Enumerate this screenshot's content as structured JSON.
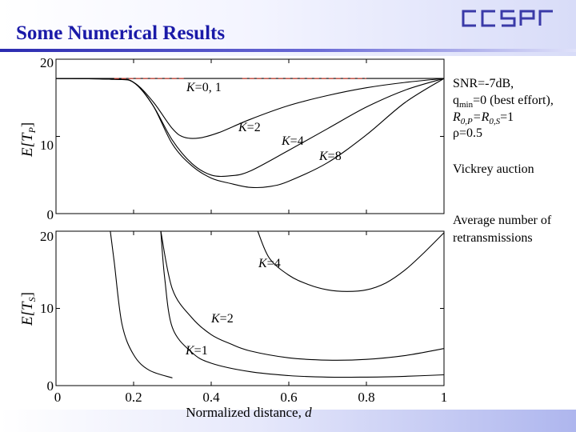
{
  "slide": {
    "title": "Some Numerical Results",
    "logo_text": "CCSPr",
    "colors": {
      "title": "#1a1aa8",
      "rule": "#2b2bb0",
      "curve": "#000000"
    }
  },
  "annotations": {
    "snr": "SNR=-7dB,",
    "qmin_pre": "q",
    "qmin_sub": "min",
    "qmin_post": "=0 (best effort),",
    "r_a": "R",
    "r_a_sub": "0,P",
    "r_mid": "=R",
    "r_b_sub": "0,S",
    "r_end": "=1",
    "rho": "ρ=0.5",
    "auction": "Vickrey auction",
    "avg1": "Average number of",
    "avg2": "retransmissions"
  },
  "chart_data": [
    {
      "type": "line",
      "ylabel": "E[T_P]",
      "ylabel_main": "E[T",
      "ylabel_sub": "P",
      "ylabel_end": "]",
      "ylim": [
        0,
        20
      ],
      "xlim": [
        0,
        1
      ],
      "yticks": [
        "20",
        "10",
        "0"
      ],
      "series": [
        {
          "name": "K=0, 1",
          "style": "dashed",
          "x": [
            0.0,
            0.15,
            0.8,
            1.0
          ],
          "y": [
            17.5,
            17.5,
            17.5,
            17.5
          ]
        },
        {
          "name": "K=2",
          "x": [
            0.0,
            0.15,
            0.2,
            0.25,
            0.3,
            0.33,
            0.37,
            0.42,
            0.5,
            0.6,
            0.7,
            0.8,
            0.9,
            1.0
          ],
          "y": [
            17.5,
            17.4,
            17.0,
            14.5,
            11.0,
            9.9,
            9.8,
            10.5,
            12.2,
            14.0,
            15.3,
            16.3,
            17.0,
            17.5
          ]
        },
        {
          "name": "K=4",
          "x": [
            0.0,
            0.15,
            0.2,
            0.25,
            0.3,
            0.35,
            0.4,
            0.45,
            0.5,
            0.6,
            0.7,
            0.8,
            0.9,
            1.0
          ],
          "y": [
            17.5,
            17.4,
            17.0,
            14.0,
            9.5,
            6.5,
            5.0,
            4.9,
            5.5,
            8.2,
            11.0,
            13.8,
            16.0,
            17.5
          ]
        },
        {
          "name": "K=8",
          "x": [
            0.0,
            0.15,
            0.2,
            0.25,
            0.3,
            0.35,
            0.4,
            0.45,
            0.5,
            0.55,
            0.6,
            0.7,
            0.8,
            0.9,
            1.0
          ],
          "y": [
            17.5,
            17.4,
            17.0,
            14.0,
            9.0,
            6.2,
            4.6,
            3.9,
            3.4,
            3.5,
            4.2,
            6.6,
            10.2,
            14.4,
            17.5
          ]
        }
      ],
      "labels": [
        {
          "k": "K",
          "v": "=0, 1"
        },
        {
          "k": "K",
          "v": "=2"
        },
        {
          "k": "K",
          "v": "=4"
        },
        {
          "k": "K",
          "v": "=8"
        }
      ]
    },
    {
      "type": "line",
      "ylabel": "E[T_S]",
      "ylabel_main": "E[T",
      "ylabel_sub": "S",
      "ylabel_end": "]",
      "xlabel": "Normalized distance, d",
      "xlabel_main": "Normalized distance, ",
      "xlabel_var": "d",
      "ylim": [
        0,
        20
      ],
      "xlim": [
        0,
        1
      ],
      "yticks": [
        "20",
        "10",
        "0"
      ],
      "xticks": [
        "0",
        "0.2",
        "0.4",
        "0.6",
        "0.8",
        "1"
      ],
      "series": [
        {
          "name": "K=4",
          "x": [
            0.52,
            0.55,
            0.6,
            0.65,
            0.7,
            0.75,
            0.8,
            0.85,
            0.9,
            0.95,
            1.0
          ],
          "y": [
            20.0,
            16.5,
            14.3,
            13.1,
            12.4,
            12.2,
            12.4,
            13.3,
            15.0,
            17.3,
            19.8
          ]
        },
        {
          "name": "K=2",
          "x": [
            0.27,
            0.3,
            0.35,
            0.4,
            0.45,
            0.5,
            0.6,
            0.7,
            0.8,
            0.9,
            1.0
          ],
          "y": [
            20.0,
            12.5,
            8.8,
            6.6,
            5.4,
            4.5,
            3.6,
            3.3,
            3.4,
            3.9,
            4.8
          ]
        },
        {
          "name": "K=1",
          "x": [
            0.27,
            0.28,
            0.3,
            0.35,
            0.4,
            0.5,
            0.6,
            0.7,
            0.8,
            0.9,
            1.0
          ],
          "y": [
            20.0,
            14.0,
            7.5,
            4.3,
            2.9,
            1.8,
            1.3,
            1.1,
            1.1,
            1.2,
            1.4
          ]
        },
        {
          "name": "",
          "x": [
            0.14,
            0.15,
            0.17,
            0.2,
            0.24,
            0.3
          ],
          "y": [
            20.0,
            16.0,
            8.0,
            4.0,
            2.0,
            1.0
          ]
        }
      ],
      "labels": [
        {
          "k": "K",
          "v": "=4"
        },
        {
          "k": "K",
          "v": "=2"
        },
        {
          "k": "K",
          "v": "=1"
        }
      ]
    }
  ]
}
